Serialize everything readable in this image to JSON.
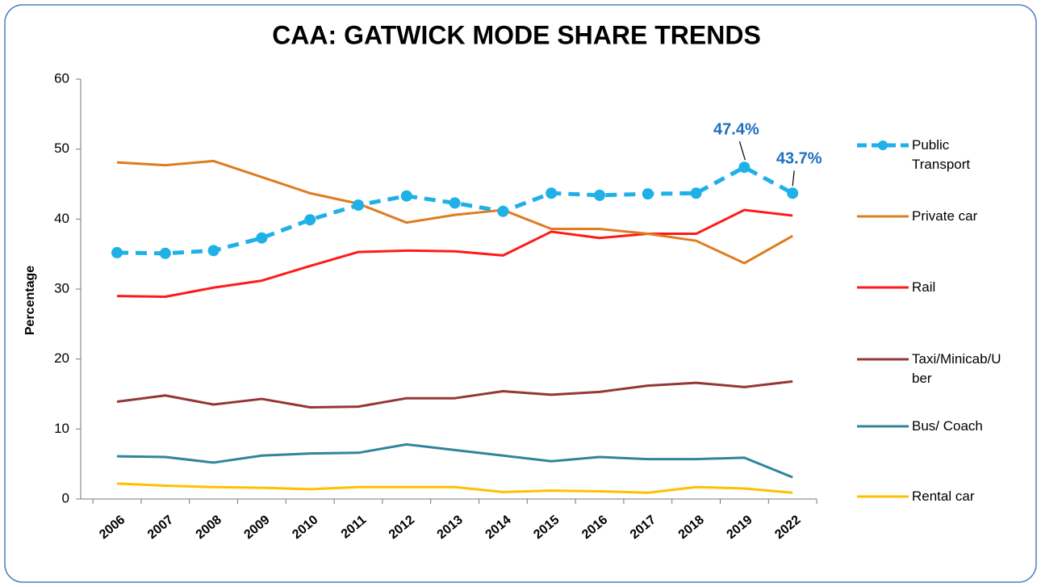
{
  "chart_data": {
    "type": "line",
    "title": "CAA: GATWICK MODE SHARE TRENDS",
    "y_label": "Percentage",
    "categories": [
      "2006",
      "2007",
      "2008",
      "2009",
      "2010",
      "2011",
      "2012",
      "2013",
      "2014",
      "2015",
      "2016",
      "2017",
      "2018",
      "2019",
      "2022"
    ],
    "ylim": [
      0,
      60
    ],
    "yticks": [
      0,
      10,
      20,
      30,
      40,
      50,
      60
    ],
    "legend": "right",
    "series": [
      {
        "name": "Public Transport",
        "color": "#1fb0e8",
        "dashed": true,
        "markers": true,
        "values": [
          35.2,
          35.1,
          35.5,
          37.3,
          39.9,
          42.0,
          43.3,
          42.3,
          41.1,
          43.7,
          43.4,
          43.6,
          43.7,
          47.4,
          43.7
        ],
        "value_labels": [
          null,
          null,
          null,
          null,
          null,
          null,
          null,
          null,
          null,
          null,
          null,
          null,
          null,
          "47.4%",
          "43.7%"
        ]
      },
      {
        "name": "Private car",
        "color": "#e07b1f",
        "values": [
          48.1,
          47.7,
          48.3,
          46.0,
          43.7,
          42.2,
          39.5,
          40.6,
          41.3,
          38.6,
          38.6,
          37.9,
          36.9,
          33.7,
          37.6
        ]
      },
      {
        "name": "Rail",
        "color": "#ff1a1a",
        "values": [
          29.0,
          28.9,
          30.2,
          31.2,
          33.3,
          35.3,
          35.5,
          35.4,
          34.8,
          38.2,
          37.3,
          37.9,
          37.9,
          41.3,
          40.5
        ]
      },
      {
        "name": "Taxi/Minicab/Uber",
        "color": "#953735",
        "values": [
          13.9,
          14.8,
          13.5,
          14.3,
          13.1,
          13.2,
          14.4,
          14.4,
          15.4,
          14.9,
          15.3,
          16.2,
          16.6,
          16.0,
          16.8
        ]
      },
      {
        "name": "Bus/ Coach",
        "color": "#31849b",
        "values": [
          6.1,
          6.0,
          5.2,
          6.2,
          6.5,
          6.6,
          7.8,
          7.0,
          6.2,
          5.4,
          6.0,
          5.7,
          5.7,
          5.9,
          3.1
        ]
      },
      {
        "name": "Rental car",
        "color": "#ffc000",
        "values": [
          2.2,
          1.9,
          1.7,
          1.6,
          1.4,
          1.7,
          1.7,
          1.7,
          1.0,
          1.2,
          1.1,
          0.9,
          1.7,
          1.5,
          0.9
        ]
      }
    ]
  }
}
